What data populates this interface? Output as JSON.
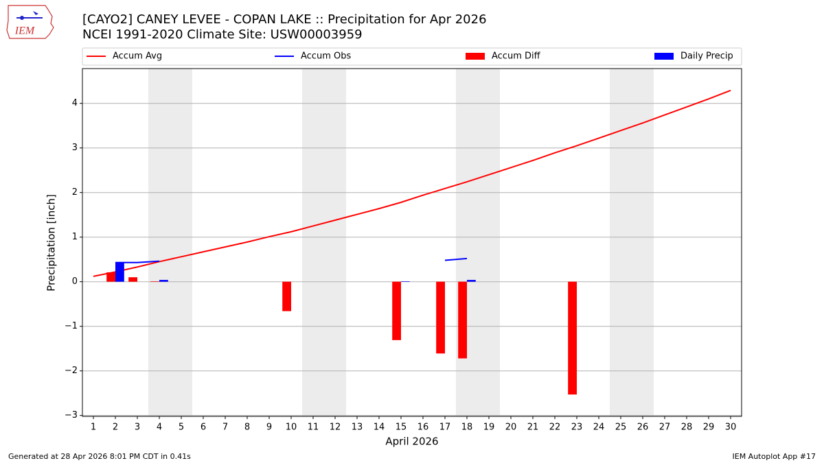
{
  "chart_data": {
    "type": "combo",
    "title": "[CAYO2] CANEY LEVEE - COPAN LAKE :: Precipitation for Apr 2026",
    "subtitle": "NCEI 1991-2020 Climate Site: USW00003959",
    "logo_text": "IEM",
    "x_label": "April 2026",
    "y_label": "Precipitation [inch]",
    "footer_left": "Generated at 28 Apr 2026 8:01 PM CDT in 0.41s",
    "footer_right": "IEM Autoplot App #17",
    "x": [
      1,
      2,
      3,
      4,
      5,
      6,
      7,
      8,
      9,
      10,
      11,
      12,
      13,
      14,
      15,
      16,
      17,
      18,
      19,
      20,
      21,
      22,
      23,
      24,
      25,
      26,
      27,
      28,
      29,
      30
    ],
    "xlim": [
      0.5,
      30.5
    ],
    "xticks": [
      1,
      2,
      3,
      4,
      5,
      6,
      7,
      8,
      9,
      10,
      11,
      12,
      13,
      14,
      15,
      16,
      17,
      18,
      19,
      20,
      21,
      22,
      23,
      24,
      25,
      26,
      27,
      28,
      29,
      30
    ],
    "ylim": [
      -3.02,
      4.78
    ],
    "yticks": [
      {
        "value": -3,
        "label": "−3"
      },
      {
        "value": -2,
        "label": "−2"
      },
      {
        "value": -1,
        "label": "−1"
      },
      0,
      1,
      2,
      3,
      4
    ],
    "grid": true,
    "weekend_days": [
      4,
      5,
      11,
      12,
      18,
      19,
      25,
      26
    ],
    "weekend_color": "#ececec",
    "series": [
      {
        "name": "Accum Avg",
        "type": "line",
        "color": "#ff0000",
        "values": [
          0.12,
          0.22,
          0.33,
          0.45,
          0.56,
          0.67,
          0.78,
          0.89,
          1.01,
          1.12,
          1.25,
          1.38,
          1.51,
          1.64,
          1.78,
          1.94,
          2.09,
          2.24,
          2.4,
          2.56,
          2.72,
          2.89,
          3.05,
          3.22,
          3.39,
          3.56,
          3.74,
          3.92,
          4.1,
          4.29
        ]
      },
      {
        "name": "Accum Obs",
        "type": "line",
        "color": "#0000ff",
        "values": [
          null,
          0.43,
          0.43,
          0.46,
          null,
          null,
          null,
          null,
          null,
          null,
          null,
          null,
          null,
          null,
          null,
          null,
          0.48,
          0.52,
          null,
          null,
          null,
          null,
          null,
          null,
          null,
          null,
          null,
          null,
          null,
          null
        ]
      },
      {
        "name": "Accum Diff",
        "type": "bar",
        "color": "#ff0000",
        "values": [
          null,
          0.21,
          0.1,
          0.01,
          null,
          null,
          null,
          null,
          null,
          -0.66,
          null,
          null,
          null,
          null,
          -1.31,
          null,
          -1.61,
          -1.72,
          null,
          null,
          null,
          null,
          -2.53,
          null,
          null,
          null,
          null,
          null,
          null,
          null
        ]
      },
      {
        "name": "Daily Precip",
        "type": "bar",
        "color": "#0000ff",
        "values": [
          null,
          0.43,
          null,
          0.04,
          null,
          null,
          null,
          null,
          null,
          null,
          null,
          null,
          null,
          null,
          0.01,
          null,
          null,
          0.04,
          null,
          null,
          null,
          null,
          null,
          null,
          null,
          null,
          null,
          null,
          null,
          null
        ]
      }
    ]
  }
}
